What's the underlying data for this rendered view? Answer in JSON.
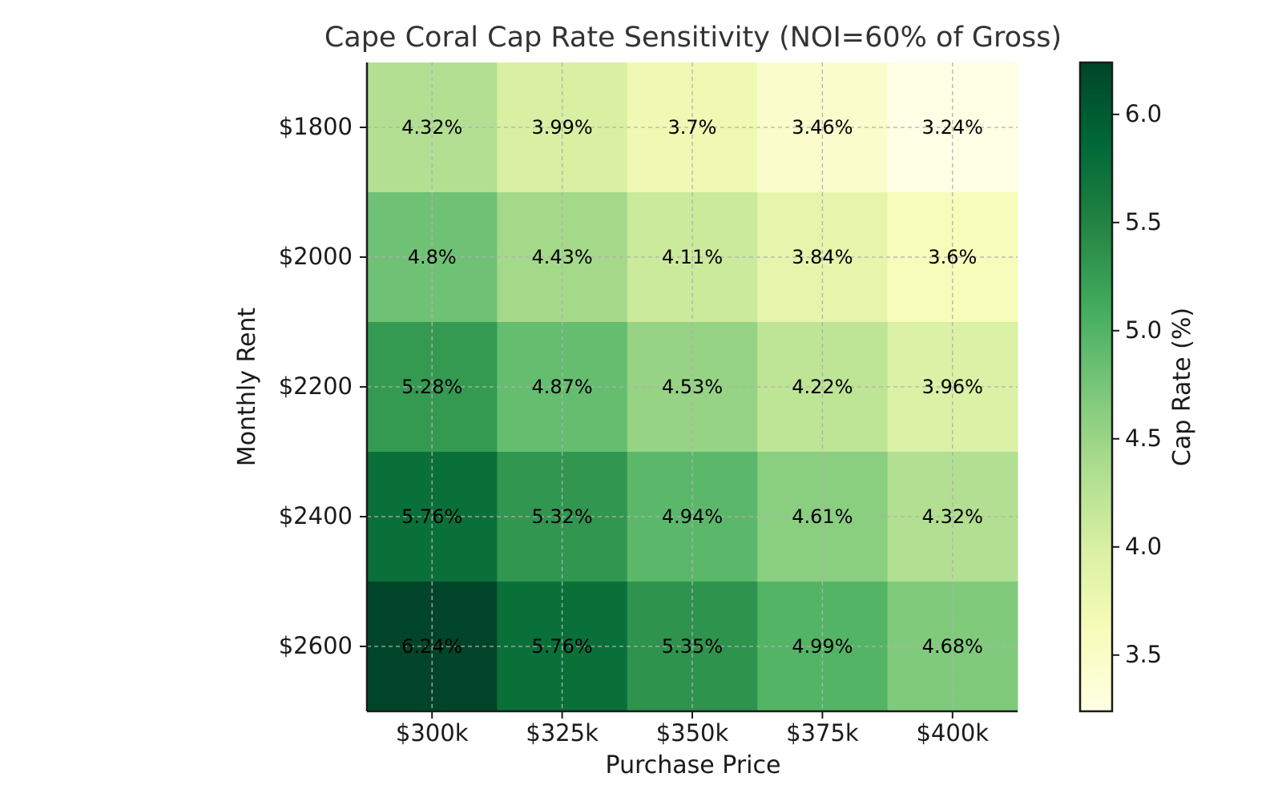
{
  "chart_data": {
    "type": "heatmap",
    "title": "Cape Coral Cap Rate Sensitivity (NOI=60% of Gross)",
    "xlabel": "Purchase Price",
    "ylabel": "Monthly Rent",
    "x_categories": [
      "$300k",
      "$325k",
      "$350k",
      "$375k",
      "$400k"
    ],
    "y_categories": [
      "$1800",
      "$2000",
      "$2200",
      "$2400",
      "$2600"
    ],
    "values": [
      [
        4.32,
        3.99,
        3.7,
        3.46,
        3.24
      ],
      [
        4.8,
        4.43,
        4.11,
        3.84,
        3.6
      ],
      [
        5.28,
        4.87,
        4.53,
        4.22,
        3.96
      ],
      [
        5.76,
        5.32,
        4.94,
        4.61,
        4.32
      ],
      [
        6.24,
        5.76,
        5.35,
        4.99,
        4.68
      ]
    ],
    "cell_labels": [
      [
        "4.32%",
        "3.99%",
        "3.7%",
        "3.46%",
        "3.24%"
      ],
      [
        "4.8%",
        "4.43%",
        "4.11%",
        "3.84%",
        "3.6%"
      ],
      [
        "5.28%",
        "4.87%",
        "4.53%",
        "4.22%",
        "3.96%"
      ],
      [
        "5.76%",
        "5.32%",
        "4.94%",
        "4.61%",
        "4.32%"
      ],
      [
        "6.24%",
        "5.76%",
        "5.35%",
        "4.99%",
        "4.68%"
      ]
    ],
    "colorbar": {
      "label": "Cap Rate (%)",
      "range": [
        3.24,
        6.24
      ],
      "ticks": [
        "3.5",
        "4.0",
        "4.5",
        "5.0",
        "5.5",
        "6.0"
      ],
      "colormap": "YlGn"
    },
    "grid": true
  }
}
